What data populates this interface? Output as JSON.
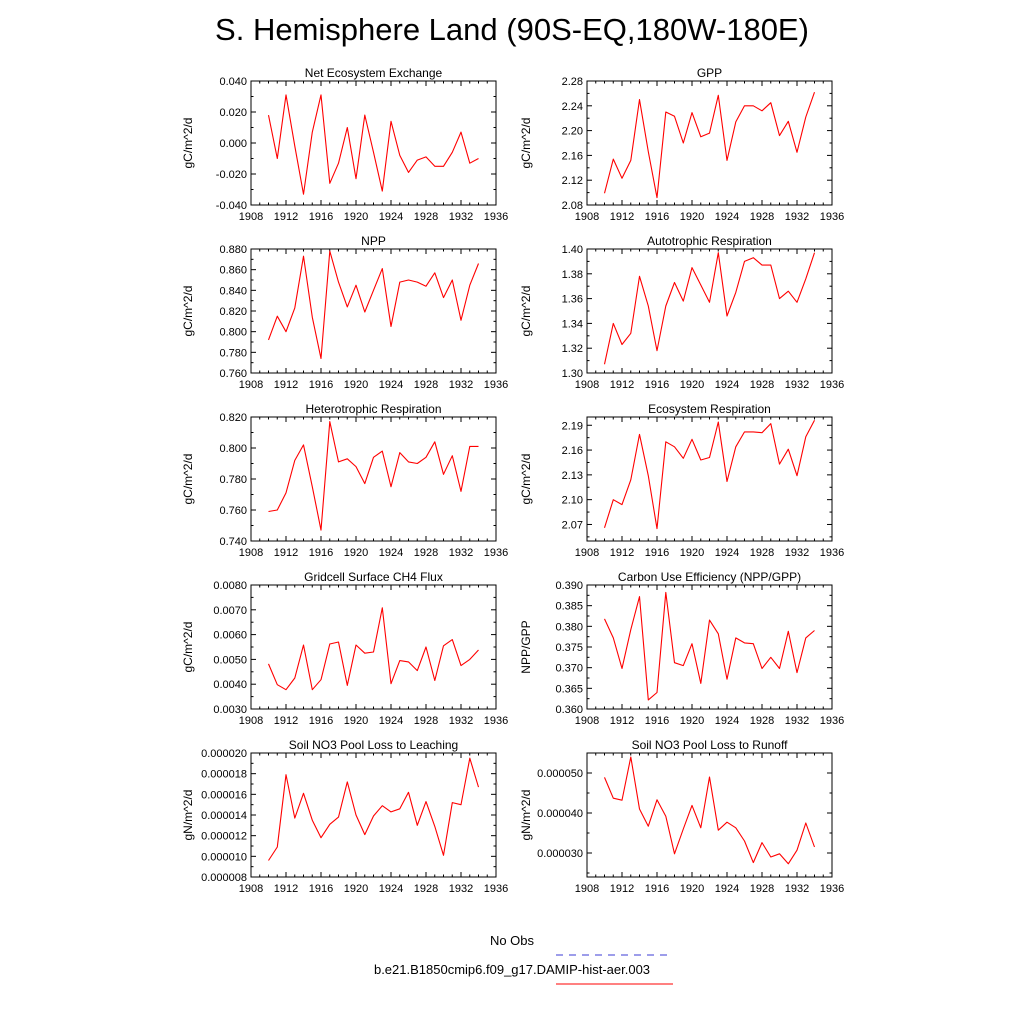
{
  "title": "S. Hemisphere Land (90S-EQ,180W-180E)",
  "colors": {
    "model_line": "#ff0000",
    "obs_line": "#3b3bd6",
    "axis": "#000000"
  },
  "legend": {
    "obs_label": "No Obs",
    "model_label": "b.e21.B1850cmip6.f09_g17.DAMIP-hist-aer.003"
  },
  "chart_data": [
    {
      "type": "line",
      "title": "Net Ecosystem Exchange",
      "xlabel": "",
      "ylabel": "gC/m^2/d",
      "xlim": [
        1908,
        1936
      ],
      "xticks": [
        1908,
        1912,
        1916,
        1920,
        1924,
        1928,
        1932,
        1936
      ],
      "ylim": [
        -0.04,
        0.04
      ],
      "yticks": [
        -0.04,
        -0.02,
        0.0,
        0.02,
        0.04
      ],
      "yticklabels": [
        "-0.040",
        "-0.020",
        "0.000",
        "0.020",
        "0.040"
      ],
      "x": [
        1910,
        1911,
        1912,
        1913,
        1914,
        1915,
        1916,
        1917,
        1918,
        1919,
        1920,
        1921,
        1922,
        1923,
        1924,
        1925,
        1926,
        1927,
        1928,
        1929,
        1930,
        1931,
        1932,
        1933,
        1934
      ],
      "series": [
        {
          "values": [
            0.018,
            -0.01,
            0.031,
            -0.002,
            -0.033,
            0.007,
            0.031,
            -0.026,
            -0.013,
            0.01,
            -0.023,
            0.018,
            -0.006,
            -0.031,
            0.014,
            -0.008,
            -0.019,
            -0.011,
            -0.009,
            -0.015,
            -0.015,
            -0.006,
            0.007,
            -0.013,
            -0.01
          ]
        }
      ]
    },
    {
      "type": "line",
      "title": "GPP",
      "xlabel": "",
      "ylabel": "gC/m^2/d",
      "xlim": [
        1908,
        1936
      ],
      "xticks": [
        1908,
        1912,
        1916,
        1920,
        1924,
        1928,
        1932,
        1936
      ],
      "ylim": [
        2.08,
        2.28
      ],
      "yticks": [
        2.08,
        2.12,
        2.16,
        2.2,
        2.24,
        2.28
      ],
      "yticklabels": [
        "2.08",
        "2.12",
        "2.16",
        "2.20",
        "2.24",
        "2.28"
      ],
      "x": [
        1910,
        1911,
        1912,
        1913,
        1914,
        1915,
        1916,
        1917,
        1918,
        1919,
        1920,
        1921,
        1922,
        1923,
        1924,
        1925,
        1926,
        1927,
        1928,
        1929,
        1930,
        1931,
        1932,
        1933,
        1934
      ],
      "series": [
        {
          "values": [
            2.099,
            2.154,
            2.123,
            2.152,
            2.25,
            2.166,
            2.092,
            2.23,
            2.223,
            2.18,
            2.229,
            2.19,
            2.196,
            2.257,
            2.152,
            2.214,
            2.24,
            2.24,
            2.232,
            2.245,
            2.192,
            2.215,
            2.165,
            2.222,
            2.262
          ]
        }
      ]
    },
    {
      "type": "line",
      "title": "NPP",
      "xlabel": "",
      "ylabel": "gC/m^2/d",
      "xlim": [
        1908,
        1936
      ],
      "xticks": [
        1908,
        1912,
        1916,
        1920,
        1924,
        1928,
        1932,
        1936
      ],
      "ylim": [
        0.76,
        0.88
      ],
      "yticks": [
        0.76,
        0.78,
        0.8,
        0.82,
        0.84,
        0.86,
        0.88
      ],
      "yticklabels": [
        "0.760",
        "0.780",
        "0.800",
        "0.820",
        "0.840",
        "0.860",
        "0.880"
      ],
      "x": [
        1910,
        1911,
        1912,
        1913,
        1914,
        1915,
        1916,
        1917,
        1918,
        1919,
        1920,
        1921,
        1922,
        1923,
        1924,
        1925,
        1926,
        1927,
        1928,
        1929,
        1930,
        1931,
        1932,
        1933,
        1934
      ],
      "series": [
        {
          "values": [
            0.792,
            0.815,
            0.8,
            0.823,
            0.873,
            0.814,
            0.774,
            0.878,
            0.848,
            0.824,
            0.845,
            0.819,
            0.84,
            0.861,
            0.805,
            0.848,
            0.85,
            0.848,
            0.844,
            0.857,
            0.833,
            0.85,
            0.811,
            0.845,
            0.866
          ]
        }
      ]
    },
    {
      "type": "line",
      "title": "Autotrophic Respiration",
      "xlabel": "",
      "ylabel": "gC/m^2/d",
      "xlim": [
        1908,
        1936
      ],
      "xticks": [
        1908,
        1912,
        1916,
        1920,
        1924,
        1928,
        1932,
        1936
      ],
      "ylim": [
        1.3,
        1.4
      ],
      "yticks": [
        1.3,
        1.32,
        1.34,
        1.36,
        1.38,
        1.4
      ],
      "yticklabels": [
        "1.30",
        "1.32",
        "1.34",
        "1.36",
        "1.38",
        "1.40"
      ],
      "x": [
        1910,
        1911,
        1912,
        1913,
        1914,
        1915,
        1916,
        1917,
        1918,
        1919,
        1920,
        1921,
        1922,
        1923,
        1924,
        1925,
        1926,
        1927,
        1928,
        1929,
        1930,
        1931,
        1932,
        1933,
        1934
      ],
      "series": [
        {
          "values": [
            1.307,
            1.34,
            1.323,
            1.332,
            1.378,
            1.354,
            1.318,
            1.354,
            1.373,
            1.358,
            1.385,
            1.371,
            1.357,
            1.397,
            1.346,
            1.365,
            1.39,
            1.393,
            1.387,
            1.387,
            1.36,
            1.366,
            1.357,
            1.376,
            1.397
          ]
        }
      ]
    },
    {
      "type": "line",
      "title": "Heterotrophic Respiration",
      "xlabel": "",
      "ylabel": "gC/m^2/d",
      "xlim": [
        1908,
        1936
      ],
      "xticks": [
        1908,
        1912,
        1916,
        1920,
        1924,
        1928,
        1932,
        1936
      ],
      "ylim": [
        0.74,
        0.82
      ],
      "yticks": [
        0.74,
        0.76,
        0.78,
        0.8,
        0.82
      ],
      "yticklabels": [
        "0.740",
        "0.760",
        "0.780",
        "0.800",
        "0.820"
      ],
      "x": [
        1910,
        1911,
        1912,
        1913,
        1914,
        1915,
        1916,
        1917,
        1918,
        1919,
        1920,
        1921,
        1922,
        1923,
        1924,
        1925,
        1926,
        1927,
        1928,
        1929,
        1930,
        1931,
        1932,
        1933,
        1934
      ],
      "series": [
        {
          "values": [
            0.759,
            0.76,
            0.771,
            0.792,
            0.802,
            0.775,
            0.747,
            0.817,
            0.791,
            0.793,
            0.788,
            0.777,
            0.794,
            0.798,
            0.775,
            0.797,
            0.791,
            0.79,
            0.794,
            0.804,
            0.783,
            0.795,
            0.772,
            0.801,
            0.801
          ]
        }
      ]
    },
    {
      "type": "line",
      "title": "Ecosystem Respiration",
      "xlabel": "",
      "ylabel": "gC/m^2/d",
      "xlim": [
        1908,
        1936
      ],
      "xticks": [
        1908,
        1912,
        1916,
        1920,
        1924,
        1928,
        1932,
        1936
      ],
      "ylim": [
        2.05,
        2.2
      ],
      "yticks": [
        2.07,
        2.1,
        2.13,
        2.16,
        2.19
      ],
      "yticklabels": [
        "2.07",
        "2.10",
        "2.13",
        "2.16",
        "2.19"
      ],
      "x": [
        1910,
        1911,
        1912,
        1913,
        1914,
        1915,
        1916,
        1917,
        1918,
        1919,
        1920,
        1921,
        1922,
        1923,
        1924,
        1925,
        1926,
        1927,
        1928,
        1929,
        1930,
        1931,
        1932,
        1933,
        1934
      ],
      "series": [
        {
          "values": [
            2.066,
            2.1,
            2.094,
            2.124,
            2.179,
            2.129,
            2.065,
            2.17,
            2.164,
            2.15,
            2.173,
            2.148,
            2.151,
            2.194,
            2.122,
            2.164,
            2.182,
            2.182,
            2.181,
            2.192,
            2.143,
            2.161,
            2.129,
            2.176,
            2.196
          ]
        }
      ]
    },
    {
      "type": "line",
      "title": "Gridcell Surface CH4 Flux",
      "xlabel": "",
      "ylabel": "gC/m^2/d",
      "xlim": [
        1908,
        1936
      ],
      "xticks": [
        1908,
        1912,
        1916,
        1920,
        1924,
        1928,
        1932,
        1936
      ],
      "ylim": [
        0.003,
        0.008
      ],
      "yticks": [
        0.003,
        0.004,
        0.005,
        0.006,
        0.007,
        0.008
      ],
      "yticklabels": [
        "0.0030",
        "0.0040",
        "0.0050",
        "0.0060",
        "0.0070",
        "0.0080"
      ],
      "x": [
        1910,
        1911,
        1912,
        1913,
        1914,
        1915,
        1916,
        1917,
        1918,
        1919,
        1920,
        1921,
        1922,
        1923,
        1924,
        1925,
        1926,
        1927,
        1928,
        1929,
        1930,
        1931,
        1932,
        1933,
        1934
      ],
      "series": [
        {
          "values": [
            0.00482,
            0.00398,
            0.00378,
            0.00425,
            0.00558,
            0.00378,
            0.00418,
            0.00562,
            0.0057,
            0.00395,
            0.00558,
            0.00525,
            0.0053,
            0.00708,
            0.00402,
            0.00495,
            0.0049,
            0.00455,
            0.0055,
            0.00415,
            0.00555,
            0.0058,
            0.00475,
            0.005,
            0.00538
          ]
        }
      ]
    },
    {
      "type": "line",
      "title": "Carbon Use Efficiency (NPP/GPP)",
      "xlabel": "",
      "ylabel": "NPP/GPP",
      "xlim": [
        1908,
        1936
      ],
      "xticks": [
        1908,
        1912,
        1916,
        1920,
        1924,
        1928,
        1932,
        1936
      ],
      "ylim": [
        0.36,
        0.39
      ],
      "yticks": [
        0.36,
        0.365,
        0.37,
        0.375,
        0.38,
        0.385,
        0.39
      ],
      "yticklabels": [
        "0.360",
        "0.365",
        "0.370",
        "0.375",
        "0.380",
        "0.385",
        "0.390"
      ],
      "x": [
        1910,
        1911,
        1912,
        1913,
        1914,
        1915,
        1916,
        1917,
        1918,
        1919,
        1920,
        1921,
        1922,
        1923,
        1924,
        1925,
        1926,
        1927,
        1928,
        1929,
        1930,
        1931,
        1932,
        1933,
        1934
      ],
      "series": [
        {
          "values": [
            0.3818,
            0.3772,
            0.3698,
            0.3792,
            0.3872,
            0.3622,
            0.364,
            0.3882,
            0.3712,
            0.3705,
            0.3758,
            0.3662,
            0.3815,
            0.3782,
            0.3672,
            0.3772,
            0.376,
            0.3758,
            0.3698,
            0.3725,
            0.3698,
            0.3788,
            0.3688,
            0.3772,
            0.379
          ]
        }
      ]
    },
    {
      "type": "line",
      "title": "Soil NO3 Pool Loss to Leaching",
      "xlabel": "",
      "ylabel": "gN/m^2/d",
      "xlim": [
        1908,
        1936
      ],
      "xticks": [
        1908,
        1912,
        1916,
        1920,
        1924,
        1928,
        1932,
        1936
      ],
      "ylim": [
        8e-06,
        2e-05
      ],
      "yticks": [
        8e-06,
        1e-05,
        1.2e-05,
        1.4e-05,
        1.6e-05,
        1.8e-05,
        2e-05
      ],
      "yticklabels": [
        "0.000008",
        "0.000010",
        "0.000012",
        "0.000014",
        "0.000016",
        "0.000018",
        "0.000020"
      ],
      "x": [
        1910,
        1911,
        1912,
        1913,
        1914,
        1915,
        1916,
        1917,
        1918,
        1919,
        1920,
        1921,
        1922,
        1923,
        1924,
        1925,
        1926,
        1927,
        1928,
        1929,
        1930,
        1931,
        1932,
        1933,
        1934
      ],
      "series": [
        {
          "values": [
            9.6e-06,
            1.09e-05,
            1.79e-05,
            1.37e-05,
            1.61e-05,
            1.35e-05,
            1.18e-05,
            1.31e-05,
            1.38e-05,
            1.72e-05,
            1.4e-05,
            1.21e-05,
            1.39e-05,
            1.49e-05,
            1.43e-05,
            1.46e-05,
            1.62e-05,
            1.3e-05,
            1.53e-05,
            1.29e-05,
            1.01e-05,
            1.52e-05,
            1.5e-05,
            1.95e-05,
            1.67e-05
          ]
        }
      ]
    },
    {
      "type": "line",
      "title": "Soil NO3 Pool Loss to Runoff",
      "xlabel": "",
      "ylabel": "gN/m^2/d",
      "xlim": [
        1908,
        1936
      ],
      "xticks": [
        1908,
        1912,
        1916,
        1920,
        1924,
        1928,
        1932,
        1936
      ],
      "ylim": [
        2.4e-05,
        5.5e-05
      ],
      "yticks": [
        3e-05,
        4e-05,
        5e-05
      ],
      "yticklabels": [
        "0.000030",
        "0.000040",
        "0.000050"
      ],
      "x": [
        1910,
        1911,
        1912,
        1913,
        1914,
        1915,
        1916,
        1917,
        1918,
        1919,
        1920,
        1921,
        1922,
        1923,
        1924,
        1925,
        1926,
        1927,
        1928,
        1929,
        1930,
        1931,
        1932,
        1933,
        1934
      ],
      "series": [
        {
          "values": [
            4.89e-05,
            4.37e-05,
            4.32e-05,
            5.4e-05,
            4.1e-05,
            3.67e-05,
            4.33e-05,
            3.92e-05,
            2.98e-05,
            3.6e-05,
            4.19e-05,
            3.63e-05,
            4.9e-05,
            3.57e-05,
            3.77e-05,
            3.63e-05,
            3.3e-05,
            2.76e-05,
            3.26e-05,
            2.9e-05,
            2.98e-05,
            2.73e-05,
            3.07e-05,
            3.75e-05,
            3.15e-05
          ]
        }
      ]
    }
  ]
}
